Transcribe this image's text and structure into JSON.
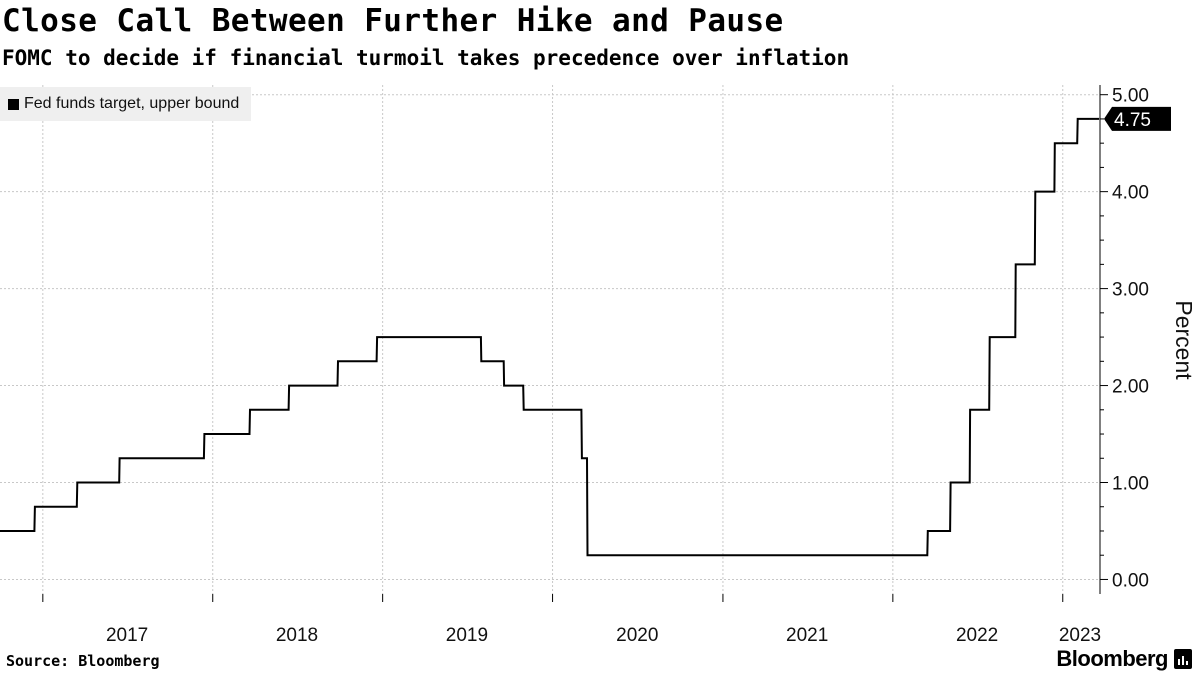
{
  "title": "Close Call Between Further Hike and Pause",
  "subtitle": "FOMC to decide if financial turmoil takes precedence over inflation",
  "source": "Source: Bloomberg",
  "brand": "Bloomberg",
  "colors": {
    "line": "#000000",
    "grid": "#c8c8c8",
    "legend_bg": "#efefef",
    "label_bg": "#000000"
  },
  "icons": {
    "brand_mark": "bar-chart-icon"
  },
  "chart_data": {
    "type": "line",
    "title": "Close Call Between Further Hike and Pause",
    "subtitle": "FOMC to decide if financial turmoil takes precedence over inflation",
    "xlabel": "",
    "ylabel": "Percent",
    "xlim": [
      "2016-10-01",
      "2023-03-22"
    ],
    "ylim": [
      -0.15,
      5.1
    ],
    "y_ticks": [
      "0.00",
      "1.00",
      "2.00",
      "3.00",
      "4.00",
      "5.00"
    ],
    "x_ticks": [
      "2017",
      "2018",
      "2019",
      "2020",
      "2021",
      "2022",
      "2023"
    ],
    "grid": true,
    "legend_position": "top-left",
    "last_value_label": "4.75",
    "series": [
      {
        "name": "Fed funds target, upper bound",
        "points": [
          [
            "2016-10-01",
            0.5
          ],
          [
            "2016-12-14",
            0.5
          ],
          [
            "2016-12-15",
            0.75
          ],
          [
            "2017-03-15",
            0.75
          ],
          [
            "2017-03-16",
            1.0
          ],
          [
            "2017-06-14",
            1.0
          ],
          [
            "2017-06-15",
            1.25
          ],
          [
            "2017-12-13",
            1.25
          ],
          [
            "2017-12-14",
            1.5
          ],
          [
            "2018-03-21",
            1.5
          ],
          [
            "2018-03-22",
            1.75
          ],
          [
            "2018-06-13",
            1.75
          ],
          [
            "2018-06-14",
            2.0
          ],
          [
            "2018-09-26",
            2.0
          ],
          [
            "2018-09-27",
            2.25
          ],
          [
            "2018-12-19",
            2.25
          ],
          [
            "2018-12-20",
            2.5
          ],
          [
            "2019-07-31",
            2.5
          ],
          [
            "2019-08-01",
            2.25
          ],
          [
            "2019-09-18",
            2.25
          ],
          [
            "2019-09-19",
            2.0
          ],
          [
            "2019-10-30",
            2.0
          ],
          [
            "2019-10-31",
            1.75
          ],
          [
            "2020-03-03",
            1.75
          ],
          [
            "2020-03-04",
            1.25
          ],
          [
            "2020-03-15",
            1.25
          ],
          [
            "2020-03-16",
            0.25
          ],
          [
            "2022-03-16",
            0.25
          ],
          [
            "2022-03-17",
            0.5
          ],
          [
            "2022-05-04",
            0.5
          ],
          [
            "2022-05-05",
            1.0
          ],
          [
            "2022-06-15",
            1.0
          ],
          [
            "2022-06-16",
            1.75
          ],
          [
            "2022-07-27",
            1.75
          ],
          [
            "2022-07-28",
            2.5
          ],
          [
            "2022-09-21",
            2.5
          ],
          [
            "2022-09-22",
            3.25
          ],
          [
            "2022-11-02",
            3.25
          ],
          [
            "2022-11-03",
            4.0
          ],
          [
            "2022-12-14",
            4.0
          ],
          [
            "2022-12-15",
            4.5
          ],
          [
            "2023-02-01",
            4.5
          ],
          [
            "2023-02-02",
            4.75
          ],
          [
            "2023-03-20",
            4.75
          ]
        ]
      }
    ]
  }
}
